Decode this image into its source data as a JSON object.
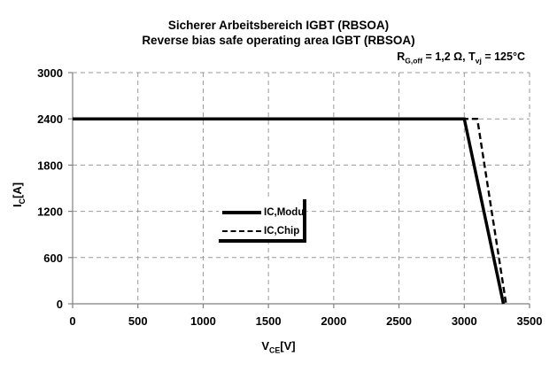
{
  "chart_data": {
    "type": "line",
    "title": "Sicherer Arbeitsbereich IGBT (RBSOA)",
    "subtitle": "Reverse bias safe operating area IGBT (RBSOA)",
    "conditions": {
      "text": "RG,off = 1,2 Ω, Tvj = 125°C",
      "r_base": "R",
      "r_sub": "G,off",
      "r_eq": " = 1,2 Ω,  ",
      "t_base": "T",
      "t_sub": "vj",
      "t_eq": " = 125°C"
    },
    "x_axis": {
      "base": "V",
      "sub": "CE",
      "unit": "[V]",
      "min": 0,
      "max": 3500
    },
    "y_axis": {
      "base": "I",
      "sub": "C",
      "unit": "[A]",
      "min": 0,
      "max": 3000
    },
    "xticks": [
      0,
      500,
      1000,
      1500,
      2000,
      2500,
      3000,
      3500
    ],
    "yticks": [
      0,
      600,
      1200,
      1800,
      2400,
      3000
    ],
    "grid": {
      "on": true,
      "style": "dashed",
      "color": "#999999"
    },
    "colors": {
      "axis": "#808080",
      "line": "#000000",
      "text": "#000000",
      "background": "#ffffff"
    },
    "legend_position": "in-plot-center",
    "series": [
      {
        "name": "IC,Modul",
        "style": "solid",
        "width": 3.5,
        "points": [
          [
            0,
            2400
          ],
          [
            3000,
            2400
          ],
          [
            3300,
            0
          ]
        ]
      },
      {
        "name": "IC,Chip",
        "style": "dashed",
        "width": 2.4,
        "points": [
          [
            0,
            2400
          ],
          [
            3100,
            2400
          ],
          [
            3320,
            0
          ]
        ]
      }
    ]
  }
}
